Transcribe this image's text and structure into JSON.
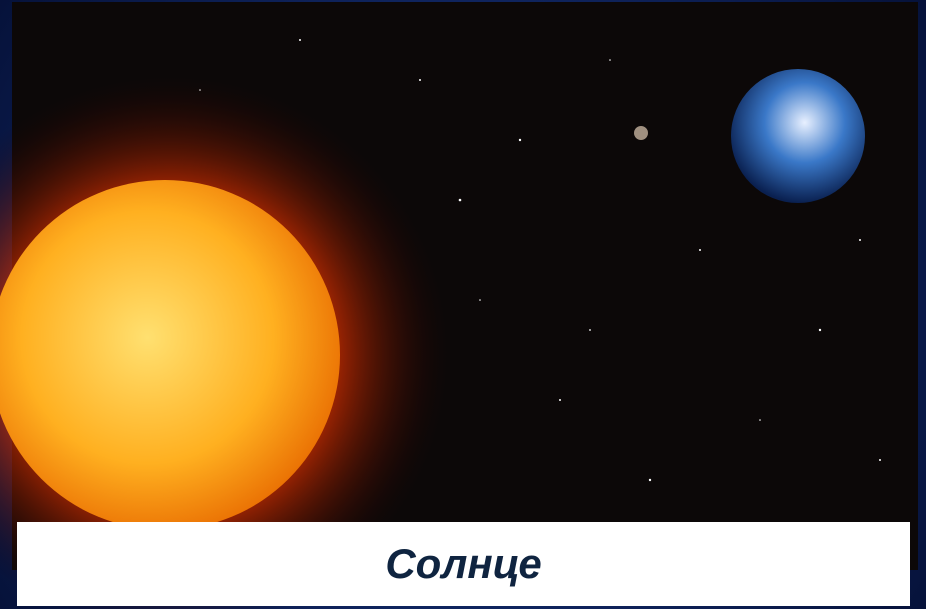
{
  "caption": "Солнце"
}
